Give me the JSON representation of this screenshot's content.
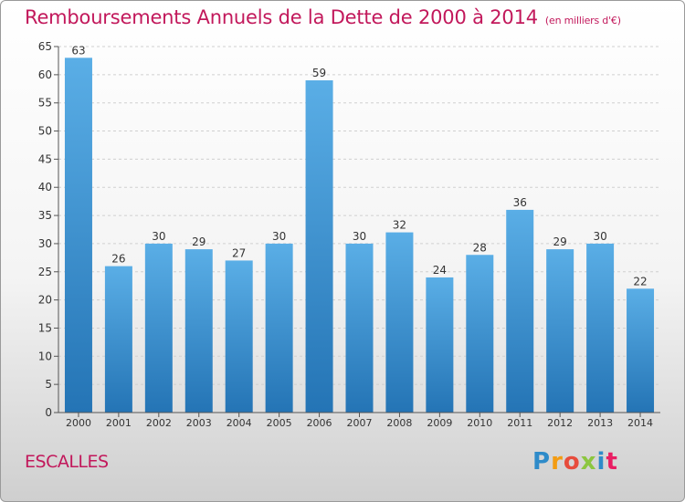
{
  "header": {
    "title": "Remboursements Annuels de la Dette de 2000 à 2014",
    "unit": "(en milliers d'€)"
  },
  "footer": {
    "town": "ESCALLES",
    "logo": "Proxiti"
  },
  "colors": {
    "title": "#c2185b",
    "bar_top": "#5aaee6",
    "bar_bottom": "#2474b5"
  },
  "chart_data": {
    "type": "bar",
    "categories": [
      "2000",
      "2001",
      "2002",
      "2003",
      "2004",
      "2005",
      "2006",
      "2007",
      "2008",
      "2009",
      "2010",
      "2011",
      "2012",
      "2013",
      "2014"
    ],
    "values": [
      63,
      26,
      30,
      29,
      27,
      30,
      59,
      30,
      32,
      24,
      28,
      36,
      29,
      30,
      22
    ],
    "ylim": [
      0,
      65
    ],
    "yticks": [
      0,
      5,
      10,
      15,
      20,
      25,
      30,
      35,
      40,
      45,
      50,
      55,
      60,
      65
    ],
    "grid": "horizontal dashed",
    "legend": "none",
    "data_labels": true
  }
}
